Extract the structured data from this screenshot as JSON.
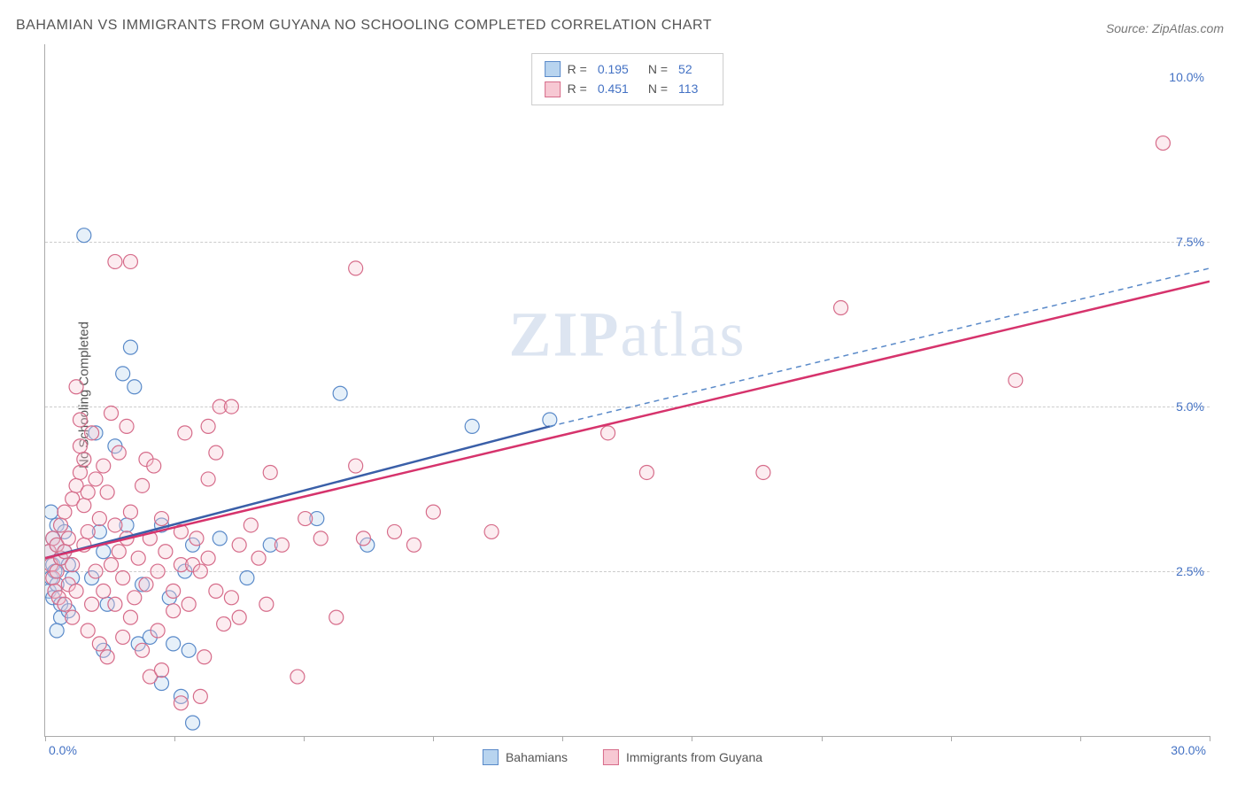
{
  "title": "BAHAMIAN VS IMMIGRANTS FROM GUYANA NO SCHOOLING COMPLETED CORRELATION CHART",
  "source": "Source: ZipAtlas.com",
  "ylabel": "No Schooling Completed",
  "watermark": "ZIPatlas",
  "legend_top": {
    "series": [
      {
        "swatch_fill": "#b8d4ef",
        "swatch_border": "#5a8ac9",
        "r_label": "R =",
        "r_value": "0.195",
        "n_label": "N =",
        "n_value": "52"
      },
      {
        "swatch_fill": "#f7c8d3",
        "swatch_border": "#d66c8a",
        "r_label": "R =",
        "r_value": "0.451",
        "n_label": "N =",
        "n_value": "113"
      }
    ]
  },
  "legend_bottom": {
    "items": [
      {
        "swatch_fill": "#b8d4ef",
        "swatch_border": "#5a8ac9",
        "label": "Bahamians"
      },
      {
        "swatch_fill": "#f7c8d3",
        "swatch_border": "#d66c8a",
        "label": "Immigrants from Guyana"
      }
    ]
  },
  "chart": {
    "type": "scatter",
    "xlim": [
      0,
      30
    ],
    "ylim": [
      0,
      10.5
    ],
    "x_axis_labels": [
      {
        "value": 0,
        "text": "0.0%"
      },
      {
        "value": 30,
        "text": "30.0%"
      }
    ],
    "y_axis_labels": [
      {
        "value": 2.5,
        "text": "2.5%"
      },
      {
        "value": 5.0,
        "text": "5.0%"
      },
      {
        "value": 7.5,
        "text": "7.5%"
      },
      {
        "value": 10.0,
        "text": "10.0%"
      }
    ],
    "gridlines_y": [
      2.5,
      5.0,
      7.5
    ],
    "xtick_positions": [
      0,
      3.33,
      6.66,
      10,
      13.33,
      16.66,
      20,
      23.33,
      26.66,
      30
    ],
    "marker_radius": 8,
    "marker_fill_opacity": 0.35,
    "marker_stroke_width": 1.2,
    "series": [
      {
        "name": "Bahamians",
        "color_fill": "#b8d4ef",
        "color_stroke": "#5a8ac9",
        "trend": {
          "x1": 0,
          "y1": 2.7,
          "x2": 13,
          "y2": 4.7,
          "dash": false,
          "color": "#3a5fa8",
          "width": 2.5
        },
        "trend_ext": {
          "x1": 13,
          "y1": 4.7,
          "x2": 30,
          "y2": 7.1,
          "dash": true,
          "color": "#5a8ac9",
          "width": 1.5
        },
        "points": [
          [
            0.1,
            2.8
          ],
          [
            0.2,
            2.6
          ],
          [
            0.15,
            2.4
          ],
          [
            0.3,
            2.9
          ],
          [
            0.2,
            3.0
          ],
          [
            0.1,
            2.2
          ],
          [
            0.25,
            2.5
          ],
          [
            0.3,
            2.3
          ],
          [
            0.2,
            2.1
          ],
          [
            0.4,
            2.7
          ],
          [
            0.3,
            3.2
          ],
          [
            0.15,
            3.4
          ],
          [
            0.4,
            2.0
          ],
          [
            0.5,
            2.8
          ],
          [
            0.6,
            2.6
          ],
          [
            0.7,
            2.4
          ],
          [
            0.5,
            3.1
          ],
          [
            0.4,
            1.8
          ],
          [
            0.6,
            1.9
          ],
          [
            0.3,
            1.6
          ],
          [
            1.0,
            7.6
          ],
          [
            1.2,
            2.4
          ],
          [
            1.3,
            4.6
          ],
          [
            1.4,
            3.1
          ],
          [
            1.5,
            2.8
          ],
          [
            1.5,
            1.3
          ],
          [
            1.6,
            2.0
          ],
          [
            1.8,
            4.4
          ],
          [
            2.0,
            5.5
          ],
          [
            2.1,
            3.2
          ],
          [
            2.2,
            5.9
          ],
          [
            2.3,
            5.3
          ],
          [
            2.4,
            1.4
          ],
          [
            2.5,
            2.3
          ],
          [
            2.7,
            1.5
          ],
          [
            3.0,
            3.2
          ],
          [
            3.0,
            0.8
          ],
          [
            3.2,
            2.1
          ],
          [
            3.3,
            1.4
          ],
          [
            3.5,
            0.6
          ],
          [
            3.6,
            2.5
          ],
          [
            3.7,
            1.3
          ],
          [
            3.8,
            2.9
          ],
          [
            3.8,
            0.2
          ],
          [
            4.5,
            3.0
          ],
          [
            5.2,
            2.4
          ],
          [
            5.8,
            2.9
          ],
          [
            7.0,
            3.3
          ],
          [
            7.6,
            5.2
          ],
          [
            8.3,
            2.9
          ],
          [
            11.0,
            4.7
          ],
          [
            13.0,
            4.8
          ]
        ]
      },
      {
        "name": "Guyana",
        "color_fill": "#f7c8d3",
        "color_stroke": "#d66c8a",
        "trend": {
          "x1": 0,
          "y1": 2.7,
          "x2": 30,
          "y2": 6.9,
          "dash": false,
          "color": "#d6336c",
          "width": 2.5
        },
        "points": [
          [
            0.1,
            2.8
          ],
          [
            0.15,
            2.6
          ],
          [
            0.2,
            2.4
          ],
          [
            0.2,
            3.0
          ],
          [
            0.25,
            2.2
          ],
          [
            0.3,
            2.5
          ],
          [
            0.3,
            2.9
          ],
          [
            0.35,
            2.1
          ],
          [
            0.4,
            2.7
          ],
          [
            0.4,
            3.2
          ],
          [
            0.5,
            2.0
          ],
          [
            0.5,
            2.8
          ],
          [
            0.5,
            3.4
          ],
          [
            0.6,
            2.3
          ],
          [
            0.6,
            3.0
          ],
          [
            0.7,
            1.8
          ],
          [
            0.7,
            2.6
          ],
          [
            0.7,
            3.6
          ],
          [
            0.8,
            2.2
          ],
          [
            0.8,
            3.8
          ],
          [
            0.8,
            5.3
          ],
          [
            0.9,
            4.4
          ],
          [
            0.9,
            4.0
          ],
          [
            0.9,
            4.8
          ],
          [
            1.0,
            2.9
          ],
          [
            1.0,
            3.5
          ],
          [
            1.0,
            4.2
          ],
          [
            1.1,
            1.6
          ],
          [
            1.1,
            3.1
          ],
          [
            1.1,
            3.7
          ],
          [
            1.2,
            2.0
          ],
          [
            1.2,
            4.6
          ],
          [
            1.3,
            2.5
          ],
          [
            1.3,
            3.9
          ],
          [
            1.4,
            1.4
          ],
          [
            1.4,
            3.3
          ],
          [
            1.5,
            2.2
          ],
          [
            1.5,
            4.1
          ],
          [
            1.6,
            1.2
          ],
          [
            1.6,
            3.7
          ],
          [
            1.7,
            2.6
          ],
          [
            1.7,
            4.9
          ],
          [
            1.8,
            2.0
          ],
          [
            1.8,
            3.2
          ],
          [
            1.8,
            7.2
          ],
          [
            1.9,
            2.8
          ],
          [
            1.9,
            4.3
          ],
          [
            2.0,
            1.5
          ],
          [
            2.0,
            2.4
          ],
          [
            2.1,
            3.0
          ],
          [
            2.1,
            4.7
          ],
          [
            2.2,
            1.8
          ],
          [
            2.2,
            3.4
          ],
          [
            2.2,
            7.2
          ],
          [
            2.3,
            2.1
          ],
          [
            2.4,
            2.7
          ],
          [
            2.5,
            1.3
          ],
          [
            2.5,
            3.8
          ],
          [
            2.6,
            2.3
          ],
          [
            2.6,
            4.2
          ],
          [
            2.7,
            0.9
          ],
          [
            2.7,
            3.0
          ],
          [
            2.8,
            4.1
          ],
          [
            2.9,
            1.6
          ],
          [
            2.9,
            2.5
          ],
          [
            3.0,
            1.0
          ],
          [
            3.0,
            3.3
          ],
          [
            3.1,
            2.8
          ],
          [
            3.3,
            1.9
          ],
          [
            3.3,
            2.2
          ],
          [
            3.5,
            2.6
          ],
          [
            3.5,
            0.5
          ],
          [
            3.5,
            3.1
          ],
          [
            3.6,
            4.6
          ],
          [
            3.7,
            2.0
          ],
          [
            3.8,
            2.6
          ],
          [
            3.9,
            3.0
          ],
          [
            4.0,
            0.6
          ],
          [
            4.1,
            1.2
          ],
          [
            4.2,
            2.7
          ],
          [
            4.2,
            3.9
          ],
          [
            4.2,
            4.7
          ],
          [
            4.4,
            2.2
          ],
          [
            4.4,
            4.3
          ],
          [
            4.5,
            5.0
          ],
          [
            4.6,
            1.7
          ],
          [
            4.8,
            2.1
          ],
          [
            4.8,
            5.0
          ],
          [
            5.0,
            2.9
          ],
          [
            5.0,
            1.8
          ],
          [
            5.3,
            3.2
          ],
          [
            5.5,
            2.7
          ],
          [
            5.7,
            2.0
          ],
          [
            5.8,
            4.0
          ],
          [
            6.1,
            2.9
          ],
          [
            6.5,
            0.9
          ],
          [
            6.7,
            3.3
          ],
          [
            7.1,
            3.0
          ],
          [
            7.5,
            1.8
          ],
          [
            8.0,
            4.1
          ],
          [
            8.0,
            7.1
          ],
          [
            8.2,
            3.0
          ],
          [
            9.0,
            3.1
          ],
          [
            9.5,
            2.9
          ],
          [
            10.0,
            3.4
          ],
          [
            11.5,
            3.1
          ],
          [
            14.5,
            4.6
          ],
          [
            15.5,
            4.0
          ],
          [
            18.5,
            4.0
          ],
          [
            20.5,
            6.5
          ],
          [
            25.0,
            5.4
          ],
          [
            28.8,
            9.0
          ],
          [
            4.0,
            2.5
          ]
        ]
      }
    ]
  }
}
